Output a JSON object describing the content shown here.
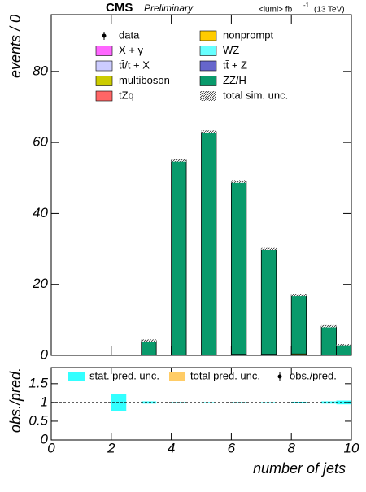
{
  "chart_data": {
    "type": "stacked_histogram",
    "title": "CMS",
    "subtitle": "Preliminary",
    "lumi_label": "<lumi> fb",
    "lumi_exponent": "-1",
    "energy_label": "(13 TeV)",
    "ylabel": "events / 0",
    "xlabel": "number of jets",
    "data_label": "data",
    "unc_label": "total sim. unc.",
    "bins": [
      0,
      0.5,
      1,
      1.5,
      2,
      2.5,
      3,
      3.5,
      4,
      4.5,
      5,
      5.5,
      6,
      6.5,
      7,
      7.5,
      8,
      8.5,
      9,
      9.5,
      10
    ],
    "series": [
      {
        "name": "X + γ",
        "color": "#ff66ff",
        "values": [
          0,
          0,
          0,
          0,
          0,
          0,
          0,
          0,
          0,
          0,
          0,
          0,
          0,
          0,
          0,
          0,
          0,
          0,
          0,
          0
        ]
      },
      {
        "name": "tt̄/t + X",
        "color": "#ccccff",
        "values": [
          0,
          0,
          0,
          0,
          0,
          0,
          0,
          0,
          0,
          0,
          0,
          0,
          0,
          0,
          0,
          0,
          0,
          0,
          0,
          0
        ]
      },
      {
        "name": "multiboson",
        "color": "#cccc00",
        "values": [
          0,
          0,
          0,
          0,
          0,
          0,
          0,
          0,
          0,
          0,
          0,
          0,
          0,
          0,
          0.3,
          0,
          0.4,
          0,
          0,
          0
        ]
      },
      {
        "name": "tZq",
        "color": "#ff6666",
        "values": [
          0,
          0,
          0,
          0,
          0,
          0,
          0,
          0,
          0,
          0,
          0,
          0,
          0,
          0,
          0,
          0,
          0,
          0,
          0,
          0
        ]
      },
      {
        "name": "nonprompt",
        "color": "#ffcc00",
        "values": [
          0,
          0,
          0,
          0,
          0,
          0,
          0,
          0,
          0,
          0,
          0,
          0,
          0.3,
          0,
          0,
          0,
          0,
          0,
          0,
          0
        ]
      },
      {
        "name": "WZ",
        "color": "#66ffff",
        "values": [
          0,
          0,
          0,
          0,
          0,
          0,
          0,
          0,
          0,
          0,
          0,
          0,
          0,
          0,
          0,
          0,
          0,
          0,
          0,
          0
        ]
      },
      {
        "name": "tt̄ + Z",
        "color": "#6666cc",
        "values": [
          0,
          0,
          0,
          0,
          0,
          0,
          0,
          0,
          0,
          0,
          0,
          0,
          0,
          0,
          0,
          0,
          0,
          0,
          0,
          0
        ]
      },
      {
        "name": "ZZ/H",
        "color": "#099a6b",
        "values": [
          0,
          0,
          0,
          0,
          0,
          0,
          4.2,
          0,
          55,
          0,
          63,
          0,
          48.7,
          0,
          29.7,
          0,
          16.6,
          0,
          8.2,
          3
        ]
      }
    ],
    "total_unc": [
      null,
      null,
      null,
      null,
      null,
      null,
      0.3,
      null,
      0.4,
      null,
      0.4,
      null,
      0.4,
      null,
      0.3,
      null,
      0.3,
      null,
      0.3,
      0.2
    ],
    "xlim": [
      0,
      10
    ],
    "xticks": [
      0,
      2,
      4,
      6,
      8,
      10
    ],
    "ylim": [
      0,
      96
    ],
    "yticks": [
      0,
      20,
      40,
      60,
      80
    ],
    "ratio": {
      "ylabel": "obs./pred.",
      "ylim": [
        0,
        1.93
      ],
      "yticks": [
        0,
        0.5,
        1,
        1.5
      ],
      "reference": 1,
      "stat_label": "stat. pred. unc.",
      "stat_color": "#33ffff",
      "total_label": "total pred. unc.",
      "total_color": "#ffcc66",
      "obs_label": "obs./pred.",
      "stat_unc": [
        null,
        null,
        null,
        null,
        0.23,
        null,
        0.03,
        null,
        0.01,
        null,
        0.01,
        null,
        0.01,
        null,
        0.01,
        null,
        0.02,
        null,
        0.03,
        0.05
      ]
    }
  }
}
